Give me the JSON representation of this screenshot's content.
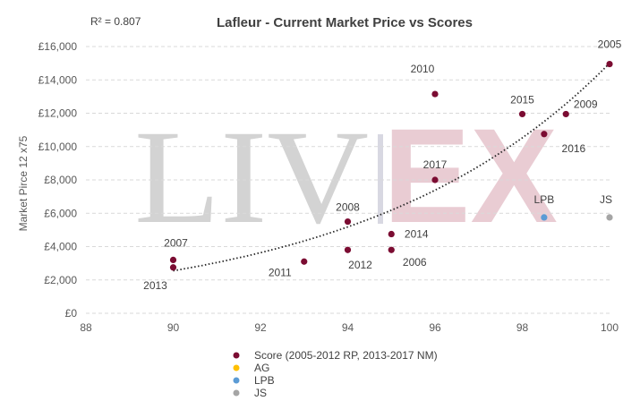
{
  "chart_data": {
    "type": "scatter",
    "title": "Lafleur - Current Market Price vs Scores",
    "annotation": "R² = 0.807",
    "ylabel": "Market Pirce 12 x75",
    "xlabel": "",
    "xlim": [
      88,
      100
    ],
    "ylim": [
      0,
      16000
    ],
    "x_ticks": [
      88,
      90,
      92,
      94,
      96,
      98,
      100
    ],
    "y_ticks": [
      0,
      2000,
      4000,
      6000,
      8000,
      10000,
      12000,
      14000,
      16000
    ],
    "y_tick_labels": [
      "£0",
      "£2,000",
      "£4,000",
      "£6,000",
      "£8,000",
      "£10,000",
      "£12,000",
      "£14,000",
      "£16,000"
    ],
    "grid": "horizontal-dashed",
    "legend_placement": "bottom",
    "watermark": {
      "left": "LIV",
      "right": "EX"
    },
    "series": [
      {
        "name": "Score (2005-2012 RP, 2013-2017 NM)",
        "color": "#7b0c32",
        "points": [
          {
            "label": "2005",
            "x": 100,
            "y": 14950
          },
          {
            "label": "2010",
            "x": 96,
            "y": 13150
          },
          {
            "label": "2015",
            "x": 98,
            "y": 11950
          },
          {
            "label": "2009",
            "x": 99,
            "y": 11950
          },
          {
            "label": "2016",
            "x": 98.5,
            "y": 10750
          },
          {
            "label": "2017",
            "x": 96,
            "y": 8000
          },
          {
            "label": "2008",
            "x": 94,
            "y": 5500
          },
          {
            "label": "2014",
            "x": 95,
            "y": 4750
          },
          {
            "label": "2006",
            "x": 95,
            "y": 3800
          },
          {
            "label": "2012",
            "x": 94,
            "y": 3800
          },
          {
            "label": "2011",
            "x": 93,
            "y": 3100
          },
          {
            "label": "2007",
            "x": 90,
            "y": 3200
          },
          {
            "label": "2013",
            "x": 90,
            "y": 2750
          }
        ]
      },
      {
        "name": "AG",
        "color": "#ffc000",
        "points": []
      },
      {
        "name": "LPB",
        "color": "#5b9bd5",
        "points": [
          {
            "label": "LPB",
            "x": 98.5,
            "y": 5750
          }
        ]
      },
      {
        "name": "JS",
        "color": "#a5a5a5",
        "points": [
          {
            "label": "JS",
            "x": 100,
            "y": 5750
          }
        ]
      }
    ],
    "trendline": {
      "type": "exponential",
      "color": "#262626",
      "x_start": 90,
      "x_end": 100,
      "y_start": 2550,
      "y_end": 15000
    }
  }
}
